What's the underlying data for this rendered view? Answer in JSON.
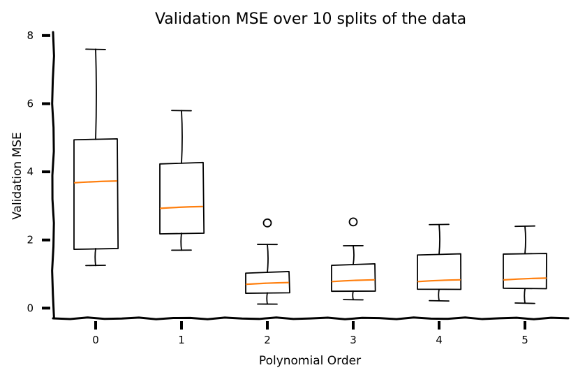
{
  "chart_data": {
    "type": "box",
    "title": "Validation MSE over 10 splits of the data",
    "xlabel": "Polynomial Order",
    "ylabel": "Validation MSE",
    "ylim": [
      -0.3,
      8.1
    ],
    "yticks": [
      0,
      2,
      4,
      6,
      8
    ],
    "grid": false,
    "categories": [
      "0",
      "1",
      "2",
      "3",
      "4",
      "5"
    ],
    "boxes": [
      {
        "whislo": 1.25,
        "q1": 1.75,
        "med": 3.7,
        "q3": 4.95,
        "whishi": 7.6,
        "fliers": []
      },
      {
        "whislo": 1.7,
        "q1": 2.2,
        "med": 2.95,
        "q3": 4.25,
        "whishi": 5.8,
        "fliers": []
      },
      {
        "whislo": 0.12,
        "q1": 0.45,
        "med": 0.72,
        "q3": 1.05,
        "whishi": 1.87,
        "fliers": [
          2.5
        ]
      },
      {
        "whislo": 0.25,
        "q1": 0.5,
        "med": 0.8,
        "q3": 1.28,
        "whishi": 1.83,
        "fliers": [
          2.53
        ]
      },
      {
        "whislo": 0.22,
        "q1": 0.55,
        "med": 0.8,
        "q3": 1.58,
        "whishi": 2.45,
        "fliers": []
      },
      {
        "whislo": 0.15,
        "q1": 0.57,
        "med": 0.85,
        "q3": 1.6,
        "whishi": 2.4,
        "fliers": []
      }
    ]
  }
}
